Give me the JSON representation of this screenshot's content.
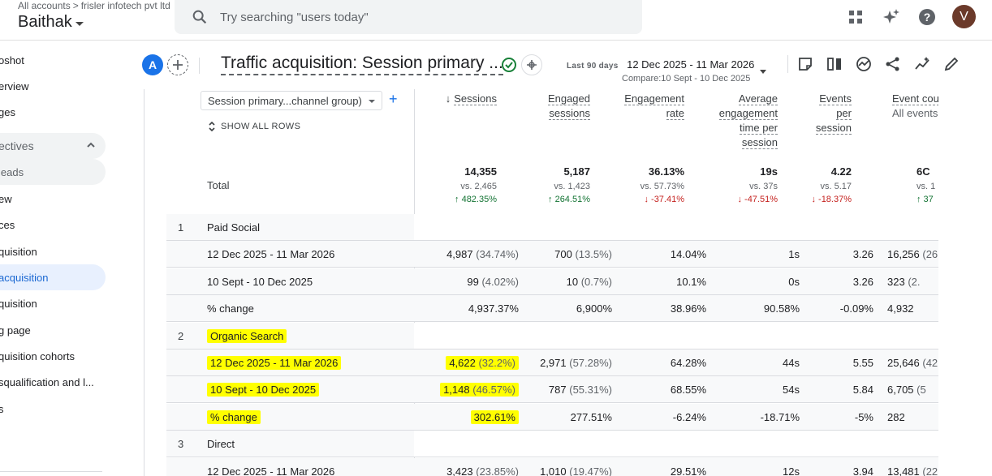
{
  "topbar": {
    "breadcrumb_root": "All accounts",
    "breadcrumb_sep": ">",
    "breadcrumb_account": "frisler infotech pvt ltd",
    "property": "Baithak",
    "search_placeholder": "Try searching \"users today\"",
    "avatar_letter": "V"
  },
  "sidebar": {
    "items": [
      {
        "label": "oshot"
      },
      {
        "label": "erview"
      },
      {
        "label": "ges"
      },
      {
        "label": "ectives"
      },
      {
        "label": "leads"
      },
      {
        "label": "ew"
      },
      {
        "label": "ces"
      },
      {
        "label": "quisition"
      },
      {
        "label": "acquisition"
      },
      {
        "label": "quisition"
      },
      {
        "label": "g page"
      },
      {
        "label": "quisition cohorts"
      },
      {
        "label": "squalification and l..."
      },
      {
        "label": "s"
      }
    ]
  },
  "report": {
    "segment_letter": "A",
    "title": "Traffic acquisition: Session primary ...",
    "date_label": "Last 90 days",
    "date_range": "12 Dec 2025 - 11 Mar 2026",
    "compare": "Compare:10 Sept - 10 Dec 2025"
  },
  "table": {
    "dimension": "Session primary...channel group)",
    "add_symbol": "+",
    "show_all": "SHOW ALL ROWS",
    "columns": [
      {
        "line1": "Sessions",
        "line2": "",
        "line3": "",
        "line4": "",
        "sort": "↓"
      },
      {
        "line1": "Engaged",
        "line2": "sessions",
        "line3": "",
        "line4": ""
      },
      {
        "line1": "Engagement",
        "line2": "rate",
        "line3": "",
        "line4": ""
      },
      {
        "line1": "Average",
        "line2": "engagement",
        "line3": "time per",
        "line4": "session"
      },
      {
        "line1": "Events",
        "line2": "per",
        "line3": "session",
        "line4": ""
      },
      {
        "line1": "Event cou",
        "line2": "All events",
        "line3": "",
        "line4": ""
      }
    ],
    "total_label": "Total",
    "totals": [
      {
        "value": "14,355",
        "vs": "vs. 2,465",
        "change": "↑ 482.35%"
      },
      {
        "value": "5,187",
        "vs": "vs. 1,423",
        "change": "↑ 264.51%"
      },
      {
        "value": "36.13%",
        "vs": "vs. 57.73%",
        "change": "↓ -37.41%"
      },
      {
        "value": "19s",
        "vs": "vs. 37s",
        "change": "↓ -47.51%"
      },
      {
        "value": "4.22",
        "vs": "vs. 5.17",
        "change": "↓ -18.37%"
      },
      {
        "value": "6C",
        "vs": "vs. 1",
        "change": "↑ 37"
      }
    ],
    "groups": [
      {
        "num": "1",
        "name": "Paid Social",
        "rows": [
          {
            "label": "12 Dec 2025 - 11 Mar 2026",
            "cells": [
              [
                "4,987",
                " (34.74%)"
              ],
              [
                "700",
                " (13.5%)"
              ],
              [
                "14.04%",
                ""
              ],
              [
                "1s",
                ""
              ],
              [
                "3.26",
                ""
              ],
              [
                "16,256",
                " (26."
              ]
            ]
          },
          {
            "label": "10 Sept - 10 Dec 2025",
            "cells": [
              [
                "99",
                " (4.02%)"
              ],
              [
                "10",
                " (0.7%)"
              ],
              [
                "10.1%",
                ""
              ],
              [
                "0s",
                ""
              ],
              [
                "3.26",
                ""
              ],
              [
                "323",
                " (2."
              ]
            ]
          },
          {
            "label": "% change",
            "cells": [
              [
                "4,937.37%",
                ""
              ],
              [
                "6,900%",
                ""
              ],
              [
                "38.96%",
                ""
              ],
              [
                "90.58%",
                ""
              ],
              [
                "-0.09%",
                ""
              ],
              [
                "4,932",
                ""
              ]
            ]
          }
        ]
      },
      {
        "num": "2",
        "name": "Organic Search",
        "rows": [
          {
            "label": "12 Dec 2025 - 11 Mar 2026",
            "cells": [
              [
                "4,622",
                " (32.2%)"
              ],
              [
                "2,971",
                " (57.28%)"
              ],
              [
                "64.28%",
                ""
              ],
              [
                "44s",
                ""
              ],
              [
                "5.55",
                ""
              ],
              [
                "25,646",
                " (42."
              ]
            ]
          },
          {
            "label": "10 Sept - 10 Dec 2025",
            "cells": [
              [
                "1,148",
                " (46.57%)"
              ],
              [
                "787",
                " (55.31%)"
              ],
              [
                "68.55%",
                ""
              ],
              [
                "54s",
                ""
              ],
              [
                "5.84",
                ""
              ],
              [
                "6,705",
                " (5"
              ]
            ]
          },
          {
            "label": "% change",
            "cells": [
              [
                "302.61%",
                ""
              ],
              [
                "277.51%",
                ""
              ],
              [
                "-6.24%",
                ""
              ],
              [
                "-18.71%",
                ""
              ],
              [
                "-5%",
                ""
              ],
              [
                "282",
                ""
              ]
            ]
          }
        ]
      },
      {
        "num": "3",
        "name": "Direct",
        "rows": [
          {
            "label": "12 Dec 2025 - 11 Mar 2026",
            "cells": [
              [
                "3,423",
                " (23.85%)"
              ],
              [
                "1,010",
                " (19.47%)"
              ],
              [
                "29.51%",
                ""
              ],
              [
                "12s",
                ""
              ],
              [
                "3.94",
                ""
              ],
              [
                "13,481",
                " (22."
              ]
            ]
          }
        ]
      }
    ]
  },
  "colors": {
    "accent": "#1a73e8",
    "active_bg": "#e8f0fe",
    "highlight": "#ffff00",
    "up": "#137333",
    "down": "#c5221f"
  }
}
